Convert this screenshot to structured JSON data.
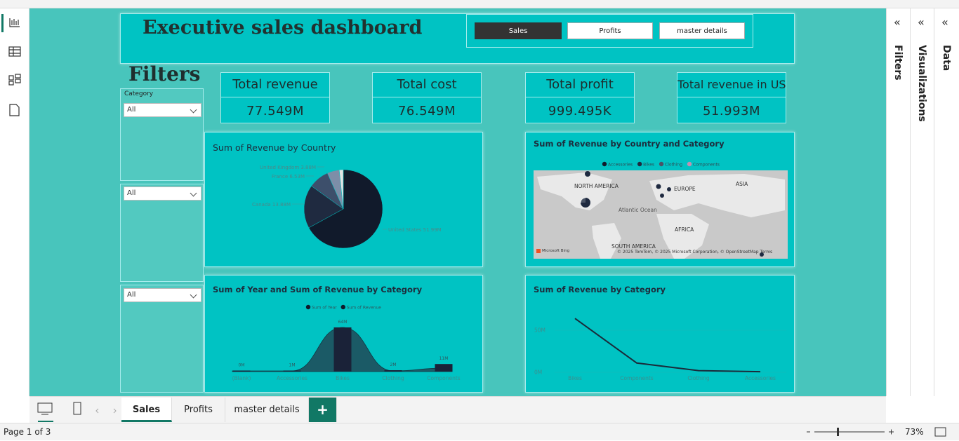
{
  "header": {
    "title": "Executive sales dashboard",
    "buttons": [
      "Sales",
      "Profits",
      "master details"
    ]
  },
  "filters": {
    "title": "Filters",
    "slicers": [
      {
        "label": "Category",
        "value": "All"
      },
      {
        "value": "All"
      },
      {
        "value": "All"
      }
    ]
  },
  "kpis": [
    {
      "label": "Total revenue",
      "value": "77.549M"
    },
    {
      "label": "Total cost",
      "value": "76.549M"
    },
    {
      "label": "Total profit",
      "value": "999.495K"
    },
    {
      "label": "Total revenue in US",
      "value": "51.993M"
    }
  ],
  "map": {
    "title": "Sum of Revenue by Country and Category",
    "legend": [
      {
        "name": "Accessories",
        "color": "#111a2b"
      },
      {
        "name": "Bikes",
        "color": "#1f2a40"
      },
      {
        "name": "Clothing",
        "color": "#4a5466"
      },
      {
        "name": "Components",
        "color": "#c48fb0"
      }
    ],
    "labels": [
      "NORTH AMERICA",
      "EUROPE",
      "ASIA",
      "Atlantic Ocean",
      "AFRICA",
      "SOUTH AMERICA"
    ],
    "logo": "Microsoft Bing",
    "attribution": "© 2025 TomTom, © 2025 Microsoft Corporation, © OpenStreetMap Terms"
  },
  "chart_data": [
    {
      "type": "pie",
      "title": "Sum of Revenue by Country",
      "values": [
        51.99,
        13.88,
        6.53,
        3.88,
        1.27
      ],
      "value_labels": [
        "United States 51.99M",
        "Canada 13.88M",
        "France 6.53M",
        "United Kingdom 3.88M",
        null
      ],
      "colors": [
        "#111a2b",
        "#1f2a40",
        "#3d4f6b",
        "#7d8ea8",
        "#e4e4e4"
      ]
    },
    {
      "type": "area",
      "title": "Sum of Year and Sum of Revenue by Category",
      "categories": [
        "(Blank)",
        "Accessories",
        "Bikes",
        "Clothing",
        "Components"
      ],
      "series": [
        {
          "name": "Sum of Year",
          "color": "#1b5a66",
          "values": [
            1,
            1,
            64,
            1,
            5
          ]
        },
        {
          "name": "Sum of Revenue",
          "color": "#1a2238",
          "values": [
            0,
            0.7,
            64,
            2,
            11
          ],
          "value_labels": [
            "0M",
            "1M",
            "64M",
            "2M",
            "11M"
          ]
        }
      ]
    },
    {
      "type": "line",
      "title": "Sum of Revenue by Category",
      "categories": [
        "Bikes",
        "Components",
        "Clothing",
        "Accessories"
      ],
      "values": [
        64,
        11,
        2,
        0.7
      ],
      "color": "#1a2b3a",
      "ylim": [
        0,
        70
      ],
      "yticks": [
        {
          "value": 0,
          "label": "0M"
        },
        {
          "value": 50,
          "label": "50M"
        }
      ]
    }
  ],
  "panes": [
    "Filters",
    "Visualizations",
    "Data"
  ],
  "tabs": [
    "Sales",
    "Profits",
    "master details",
    "+"
  ],
  "status": {
    "page": "Page 1 of 3",
    "zoom": "73%"
  }
}
